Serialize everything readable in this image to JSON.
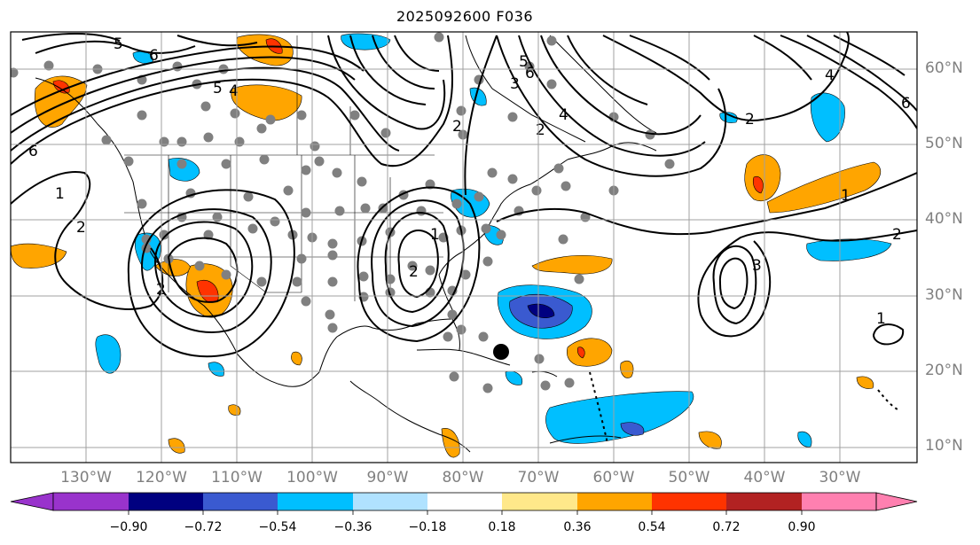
{
  "title": "2025092600 F036",
  "lat_labels": [
    "60°N",
    "50°N",
    "40°N",
    "30°N",
    "20°N",
    "10°N"
  ],
  "lon_labels": [
    "130°W",
    "120°W",
    "110°W",
    "100°W",
    "90°W",
    "80°W",
    "70°W",
    "60°W",
    "50°W",
    "40°W",
    "30°W"
  ],
  "colorbar": {
    "ticks": [
      "−0.90",
      "−0.72",
      "−0.54",
      "−0.36",
      "−0.18",
      "0.18",
      "0.36",
      "0.54",
      "0.72",
      "0.90"
    ],
    "colors": [
      "#9933cc",
      "#000080",
      "#3a5ad0",
      "#00bfff",
      "#b0e2ff",
      "#ffffff",
      "#ffe88a",
      "#ffa500",
      "#ff3300",
      "#b22222",
      "#ff80b0"
    ]
  },
  "contour_labels": [
    "5",
    "6",
    "5",
    "4",
    "6",
    "1",
    "2",
    "2",
    "2",
    "1",
    "2",
    "2",
    "3",
    "4",
    "5",
    "6",
    "2",
    "1",
    "2",
    "1",
    "3",
    "4",
    "6"
  ],
  "colors": {
    "gridline": "#a0a0a0",
    "coast": "#000000",
    "stations": "#808080"
  }
}
